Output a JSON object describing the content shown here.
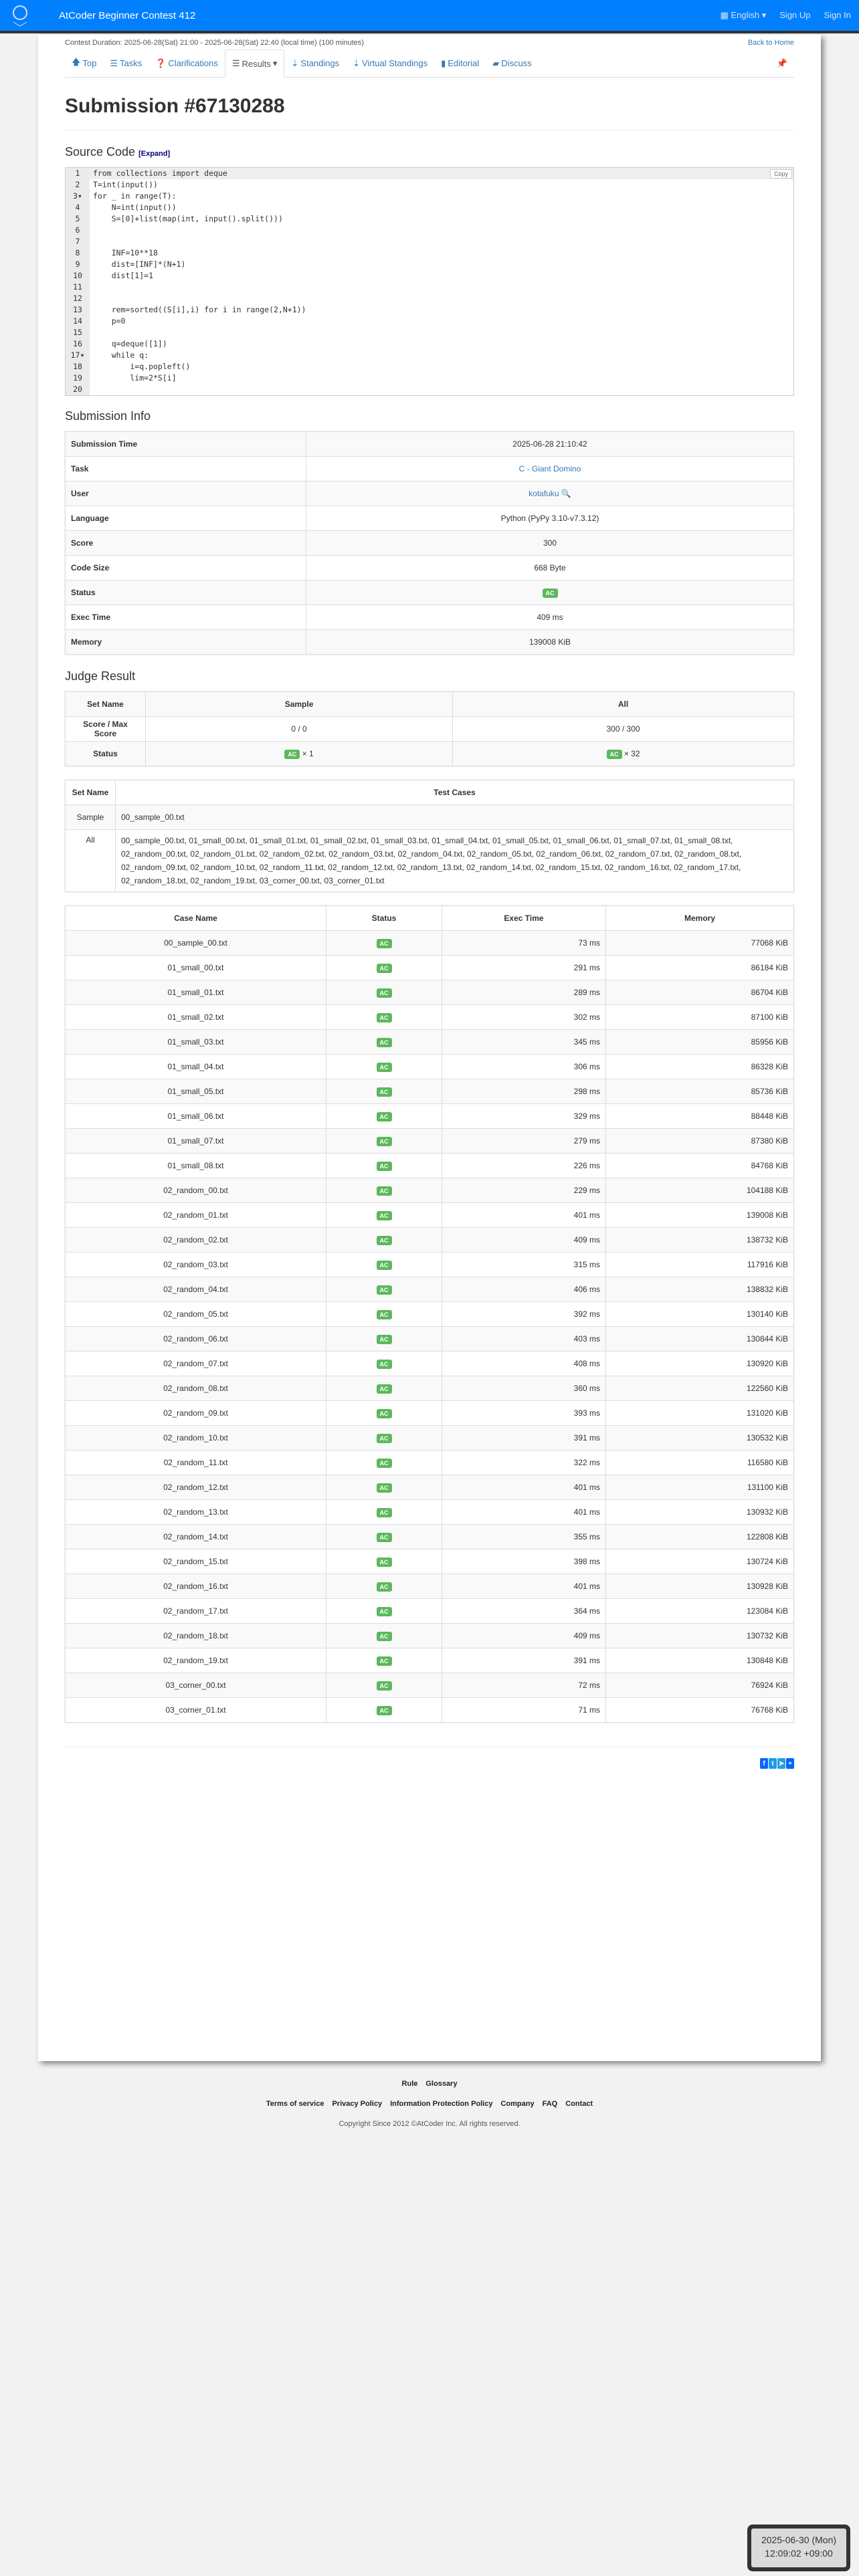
{
  "header": {
    "contest_title": "AtCoder Beginner Contest 412",
    "logo_text": "AtCoder",
    "language": "English",
    "sign_up": "Sign Up",
    "sign_in": "Sign In"
  },
  "contest": {
    "duration": "Contest Duration: 2025-06-28(Sat) 21:00 - 2025-06-28(Sat) 22:40 (local time) (100 minutes)",
    "back_home": "Back to Home"
  },
  "nav": [
    {
      "label": "Top",
      "icon": "arrow-up"
    },
    {
      "label": "Tasks",
      "icon": "list"
    },
    {
      "label": "Clarifications",
      "icon": "question"
    },
    {
      "label": "Results",
      "icon": "list"
    },
    {
      "label": "Standings",
      "icon": "sort"
    },
    {
      "label": "Virtual Standings",
      "icon": "sort"
    },
    {
      "label": "Editorial",
      "icon": "book"
    },
    {
      "label": "Discuss",
      "icon": "comment"
    }
  ],
  "title": "Submission #67130288",
  "source": {
    "heading": "Source Code",
    "expand": "[Expand]",
    "copy": "Copy",
    "lines": [
      "from collections import deque",
      "T=int(input())",
      "for _ in range(T):",
      "    N=int(input())",
      "    S=[0]+list(map(int, input().split()))",
      "",
      "",
      "    INF=10**18",
      "    dist=[INF]*(N+1)",
      "    dist[1]=1",
      "",
      "",
      "    rem=sorted((S[i],i) for i in range(2,N+1))",
      "    p=0",
      "",
      "    q=deque([1])",
      "    while q:",
      "        i=q.popleft()",
      "        lim=2*S[i]",
      ""
    ]
  },
  "info": {
    "heading": "Submission Info",
    "rows": [
      {
        "label": "Submission Time",
        "value": "2025-06-28 21:10:42"
      },
      {
        "label": "Task",
        "value": "C - Giant Domino"
      },
      {
        "label": "User",
        "value": "kotafuku"
      },
      {
        "label": "Language",
        "value": "Python (PyPy 3.10-v7.3.12)"
      },
      {
        "label": "Score",
        "value": "300"
      },
      {
        "label": "Code Size",
        "value": "668 Byte"
      },
      {
        "label": "Status",
        "value": "AC"
      },
      {
        "label": "Exec Time",
        "value": "409 ms"
      },
      {
        "label": "Memory",
        "value": "139008 KiB"
      }
    ]
  },
  "judge": {
    "heading": "Judge Result",
    "set_name": "Set Name",
    "sample": "Sample",
    "all": "All",
    "score_label": "Score / Max Score",
    "sample_score": "0 / 0",
    "all_score": "300 / 300",
    "status_label": "Status",
    "sample_status": "AC",
    "sample_count": "× 1",
    "all_status": "AC",
    "all_count": "× 32",
    "tc_set_name": "Set Name",
    "tc_header": "Test Cases",
    "tc_sample_name": "Sample",
    "tc_sample": "00_sample_00.txt",
    "tc_all_name": "All",
    "tc_all": "00_sample_00.txt, 01_small_00.txt, 01_small_01.txt, 01_small_02.txt, 01_small_03.txt, 01_small_04.txt, 01_small_05.txt, 01_small_06.txt, 01_small_07.txt, 01_small_08.txt, 02_random_00.txt, 02_random_01.txt, 02_random_02.txt, 02_random_03.txt, 02_random_04.txt, 02_random_05.txt, 02_random_06.txt, 02_random_07.txt, 02_random_08.txt, 02_random_09.txt, 02_random_10.txt, 02_random_11.txt, 02_random_12.txt, 02_random_13.txt, 02_random_14.txt, 02_random_15.txt, 02_random_16.txt, 02_random_17.txt, 02_random_18.txt, 02_random_19.txt, 03_corner_00.txt, 03_corner_01.txt"
  },
  "cases": {
    "headers": [
      "Case Name",
      "Status",
      "Exec Time",
      "Memory"
    ],
    "rows": [
      [
        "00_sample_00.txt",
        "AC",
        "73 ms",
        "77068 KiB"
      ],
      [
        "01_small_00.txt",
        "AC",
        "291 ms",
        "86184 KiB"
      ],
      [
        "01_small_01.txt",
        "AC",
        "289 ms",
        "86704 KiB"
      ],
      [
        "01_small_02.txt",
        "AC",
        "302 ms",
        "87100 KiB"
      ],
      [
        "01_small_03.txt",
        "AC",
        "345 ms",
        "85956 KiB"
      ],
      [
        "01_small_04.txt",
        "AC",
        "306 ms",
        "86328 KiB"
      ],
      [
        "01_small_05.txt",
        "AC",
        "298 ms",
        "85736 KiB"
      ],
      [
        "01_small_06.txt",
        "AC",
        "329 ms",
        "88448 KiB"
      ],
      [
        "01_small_07.txt",
        "AC",
        "279 ms",
        "87380 KiB"
      ],
      [
        "01_small_08.txt",
        "AC",
        "226 ms",
        "84768 KiB"
      ],
      [
        "02_random_00.txt",
        "AC",
        "229 ms",
        "104188 KiB"
      ],
      [
        "02_random_01.txt",
        "AC",
        "401 ms",
        "139008 KiB"
      ],
      [
        "02_random_02.txt",
        "AC",
        "409 ms",
        "138732 KiB"
      ],
      [
        "02_random_03.txt",
        "AC",
        "315 ms",
        "117916 KiB"
      ],
      [
        "02_random_04.txt",
        "AC",
        "406 ms",
        "138832 KiB"
      ],
      [
        "02_random_05.txt",
        "AC",
        "392 ms",
        "130140 KiB"
      ],
      [
        "02_random_06.txt",
        "AC",
        "403 ms",
        "130844 KiB"
      ],
      [
        "02_random_07.txt",
        "AC",
        "408 ms",
        "130920 KiB"
      ],
      [
        "02_random_08.txt",
        "AC",
        "360 ms",
        "122560 KiB"
      ],
      [
        "02_random_09.txt",
        "AC",
        "393 ms",
        "131020 KiB"
      ],
      [
        "02_random_10.txt",
        "AC",
        "391 ms",
        "130532 KiB"
      ],
      [
        "02_random_11.txt",
        "AC",
        "322 ms",
        "116580 KiB"
      ],
      [
        "02_random_12.txt",
        "AC",
        "401 ms",
        "131100 KiB"
      ],
      [
        "02_random_13.txt",
        "AC",
        "401 ms",
        "130932 KiB"
      ],
      [
        "02_random_14.txt",
        "AC",
        "355 ms",
        "122808 KiB"
      ],
      [
        "02_random_15.txt",
        "AC",
        "398 ms",
        "130724 KiB"
      ],
      [
        "02_random_16.txt",
        "AC",
        "401 ms",
        "130928 KiB"
      ],
      [
        "02_random_17.txt",
        "AC",
        "364 ms",
        "123084 KiB"
      ],
      [
        "02_random_18.txt",
        "AC",
        "409 ms",
        "130732 KiB"
      ],
      [
        "02_random_19.txt",
        "AC",
        "391 ms",
        "130848 KiB"
      ],
      [
        "03_corner_00.txt",
        "AC",
        "72 ms",
        "76924 KiB"
      ],
      [
        "03_corner_01.txt",
        "AC",
        "71 ms",
        "76768 KiB"
      ]
    ]
  },
  "share": [
    {
      "icon": "facebook",
      "color": "#0866ff"
    },
    {
      "icon": "twitter",
      "color": "#1d9bf0"
    },
    {
      "icon": "telegram",
      "color": "#2aa1d9"
    },
    {
      "icon": "plus",
      "color": "#0166ff"
    }
  ],
  "footer": {
    "links1": [
      "Rule",
      "Glossary"
    ],
    "links2": [
      "Terms of service",
      "Privacy Policy",
      "Information Protection Policy",
      "Company",
      "FAQ",
      "Contact"
    ],
    "copyright": "Copyright Since 2012 ©AtCoder Inc. All rights reserved."
  },
  "clock": {
    "date": "2025-06-30 (Mon)",
    "time": "12:09:02 +09:00"
  },
  "colors": {
    "header": "#0080ff",
    "ac": "#5cb85c",
    "link": "#337ab7"
  }
}
